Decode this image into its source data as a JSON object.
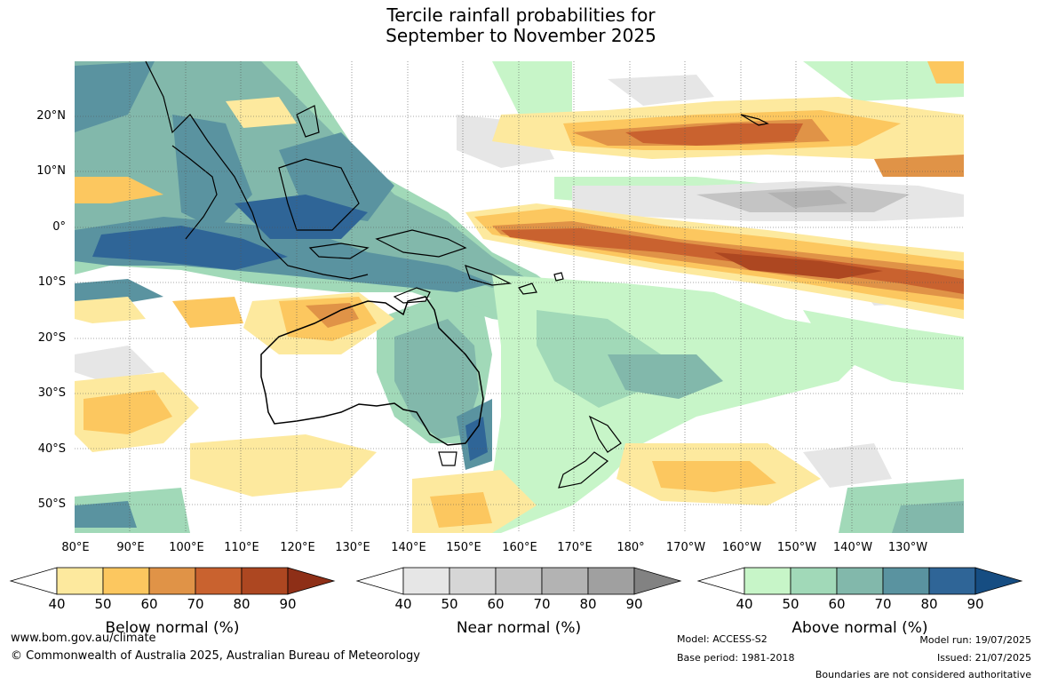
{
  "title_line1": "Tercile rainfall probabilities for",
  "title_line2": "September to November 2025",
  "lat_labels": [
    "20°N",
    "10°N",
    "0°",
    "10°S",
    "20°S",
    "30°S",
    "40°S",
    "50°S"
  ],
  "lon_labels": [
    "80°E",
    "90°E",
    "100°E",
    "110°E",
    "120°E",
    "130°E",
    "140°E",
    "150°E",
    "160°E",
    "170°E",
    "180°",
    "170°W",
    "160°W",
    "150°W",
    "140°W",
    "130°W"
  ],
  "colorbars": {
    "below": {
      "title": "Below normal (%)",
      "ticks": [
        "40",
        "50",
        "60",
        "70",
        "80",
        "90"
      ],
      "colors": [
        "#ffffff",
        "#fde99e",
        "#fcc75f",
        "#e09347",
        "#c9622f",
        "#ad4721",
        "#8e2f17"
      ]
    },
    "near": {
      "title": "Near normal (%)",
      "ticks": [
        "40",
        "50",
        "60",
        "70",
        "80",
        "90"
      ],
      "colors": [
        "#ffffff",
        "#e6e6e6",
        "#d6d6d6",
        "#c4c4c4",
        "#b3b3b3",
        "#a0a0a0",
        "#828282"
      ]
    },
    "above": {
      "title": "Above normal (%)",
      "ticks": [
        "40",
        "50",
        "60",
        "70",
        "80",
        "90"
      ],
      "colors": [
        "#ffffff",
        "#c7f5c8",
        "#a1d9b8",
        "#82b8ab",
        "#5a93a0",
        "#2f6597",
        "#164d82"
      ]
    }
  },
  "footer": {
    "website": "www.bom.gov.au/climate",
    "copyright": "© Commonwealth of Australia 2025, Australian Bureau of Meteorology",
    "model": "Model: ACCESS-S2",
    "base_period": "Base period: 1981-2018",
    "model_run": "Model run: 19/07/2025",
    "issued": "Issued: 21/07/2025",
    "boundaries": "Boundaries are not considered authoritative"
  }
}
